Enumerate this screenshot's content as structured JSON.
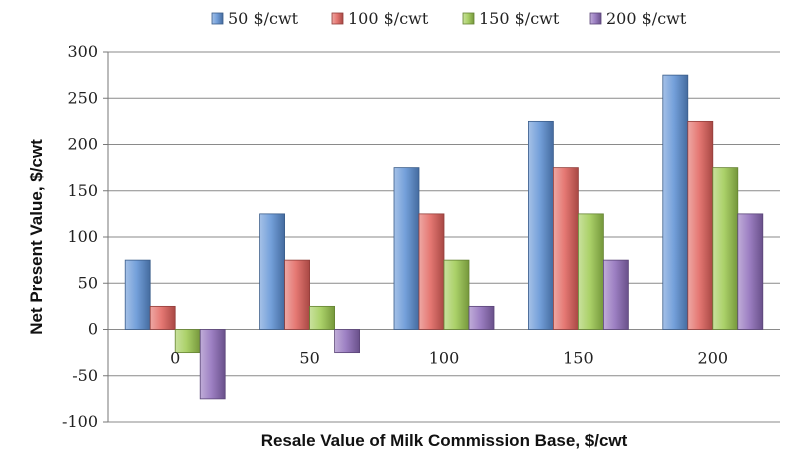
{
  "chart_data": {
    "type": "bar",
    "title": "",
    "xlabel": "Resale Value of Milk Commission Base, $/cwt",
    "ylabel": "Net Present Value, $/cwt",
    "categories": [
      "0",
      "50",
      "100",
      "150",
      "200"
    ],
    "ylim": [
      -100,
      300
    ],
    "yticks": [
      -100,
      -50,
      0,
      50,
      100,
      150,
      200,
      250,
      300
    ],
    "ytick_labels": [
      "-100",
      "-50",
      "0",
      "50",
      "100",
      "150",
      "200",
      "250",
      "300"
    ],
    "grid": "horizontal",
    "legend_position": "top",
    "series": [
      {
        "name": "50 $/cwt",
        "color": "#5b8fd4",
        "values": [
          75,
          125,
          175,
          225,
          275
        ]
      },
      {
        "name": "100 $/cwt",
        "color": "#e0605a",
        "values": [
          25,
          75,
          125,
          175,
          225
        ]
      },
      {
        "name": "150 $/cwt",
        "color": "#9cc94f",
        "values": [
          -25,
          25,
          75,
          125,
          175
        ]
      },
      {
        "name": "200 $/cwt",
        "color": "#8c6ab8",
        "values": [
          -75,
          -25,
          25,
          75,
          125
        ]
      }
    ]
  }
}
